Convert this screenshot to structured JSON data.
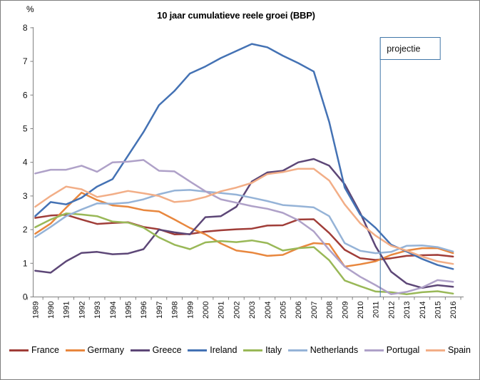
{
  "chart_data": {
    "type": "line",
    "title": "10 jaar cumulatieve reele groei (BBP)",
    "y_axis_unit": "%",
    "ylim": [
      0,
      8
    ],
    "ytick_step": 1,
    "grid": false,
    "legend_position": "bottom",
    "x": [
      1989,
      1990,
      1991,
      1992,
      1993,
      1994,
      1995,
      1996,
      1997,
      1998,
      1999,
      2000,
      2001,
      2002,
      2003,
      2004,
      2005,
      2006,
      2007,
      2008,
      2009,
      2010,
      2011,
      2012,
      2013,
      2014,
      2015,
      2016
    ],
    "projection": {
      "label": "projectie",
      "at_year": 2011.3,
      "color": "#4176A8"
    },
    "series": [
      {
        "name": "France",
        "color": "#A03D38",
        "values": [
          2.35,
          2.42,
          2.44,
          2.3,
          2.17,
          2.2,
          2.22,
          2.08,
          2.01,
          1.86,
          1.87,
          1.94,
          1.98,
          2.01,
          2.03,
          2.12,
          2.13,
          2.3,
          2.31,
          1.9,
          1.4,
          1.15,
          1.1,
          1.15,
          1.22,
          1.24,
          1.25,
          1.2
        ]
      },
      {
        "name": "Germany",
        "color": "#E8873E",
        "values": [
          1.88,
          2.18,
          2.65,
          3.1,
          2.88,
          2.72,
          2.68,
          2.58,
          2.54,
          2.3,
          2.05,
          1.86,
          1.59,
          1.38,
          1.32,
          1.22,
          1.25,
          1.45,
          1.6,
          1.57,
          0.9,
          0.97,
          1.06,
          1.25,
          1.38,
          1.45,
          1.45,
          1.3
        ]
      },
      {
        "name": "Greece",
        "color": "#5D4777",
        "values": [
          0.78,
          0.72,
          1.06,
          1.31,
          1.34,
          1.27,
          1.29,
          1.42,
          2.0,
          1.92,
          1.86,
          2.37,
          2.4,
          2.68,
          3.43,
          3.7,
          3.75,
          4.0,
          4.1,
          3.9,
          3.35,
          2.5,
          1.5,
          0.75,
          0.4,
          0.27,
          0.35,
          0.3
        ]
      },
      {
        "name": "Ireland",
        "color": "#4472B4",
        "values": [
          2.4,
          2.82,
          2.75,
          2.95,
          3.28,
          3.5,
          4.2,
          4.9,
          5.7,
          6.12,
          6.64,
          6.85,
          7.1,
          7.31,
          7.52,
          7.42,
          7.17,
          6.95,
          6.7,
          5.2,
          3.25,
          2.45,
          2.05,
          1.55,
          1.35,
          1.13,
          0.95,
          0.83
        ]
      },
      {
        "name": "Italy",
        "color": "#99B857",
        "values": [
          2.07,
          2.3,
          2.48,
          2.45,
          2.4,
          2.24,
          2.21,
          2.06,
          1.77,
          1.55,
          1.42,
          1.62,
          1.66,
          1.63,
          1.68,
          1.6,
          1.38,
          1.45,
          1.48,
          1.09,
          0.49,
          0.32,
          0.16,
          0.14,
          0.08,
          0.14,
          0.17,
          0.1
        ]
      },
      {
        "name": "Netherlands",
        "color": "#95B3D7",
        "values": [
          1.78,
          2.08,
          2.4,
          2.6,
          2.78,
          2.77,
          2.8,
          2.9,
          3.05,
          3.16,
          3.18,
          3.13,
          3.09,
          3.04,
          2.95,
          2.85,
          2.73,
          2.7,
          2.66,
          2.4,
          1.6,
          1.37,
          1.3,
          1.34,
          1.52,
          1.53,
          1.48,
          1.35
        ]
      },
      {
        "name": "Portugal",
        "color": "#AFA1C8",
        "values": [
          3.67,
          3.78,
          3.78,
          3.9,
          3.72,
          4.0,
          4.02,
          4.07,
          3.75,
          3.73,
          3.43,
          3.14,
          2.9,
          2.8,
          2.7,
          2.62,
          2.5,
          2.28,
          1.95,
          1.4,
          0.9,
          0.6,
          0.35,
          0.08,
          0.15,
          0.28,
          0.5,
          0.45
        ]
      },
      {
        "name": "Spain",
        "color": "#F2AE87",
        "values": [
          2.68,
          3.0,
          3.28,
          3.2,
          2.97,
          3.05,
          3.15,
          3.08,
          3.0,
          2.82,
          2.86,
          2.97,
          3.14,
          3.25,
          3.39,
          3.65,
          3.71,
          3.81,
          3.81,
          3.46,
          2.75,
          2.19,
          1.82,
          1.52,
          1.38,
          1.2,
          1.06,
          0.98
        ]
      }
    ],
    "axis_color": "#808080"
  },
  "frame": {
    "border_color": "#7F7F7F",
    "background": "#FFFFFF"
  }
}
